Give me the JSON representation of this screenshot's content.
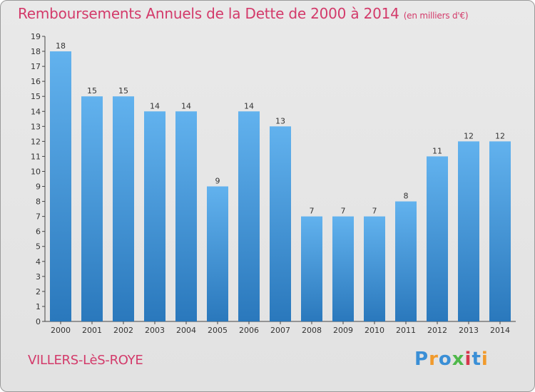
{
  "header": {
    "title": "Remboursements Annuels de la Dette de 2000 à 2014",
    "unit": "(en milliers d'€)"
  },
  "footer": {
    "commune": "VILLERS-LèS-ROYE",
    "logo_letters": [
      "P",
      "r",
      "o",
      "x",
      "i",
      "t",
      "i"
    ]
  },
  "colors": {
    "title": "#d33a6a",
    "bar_light": "#62b2ee",
    "bar_dark": "#2a78bc",
    "logo": [
      "#3a8fd6",
      "#f19a2c",
      "#3a8fd6",
      "#4fb84a",
      "#d6364c",
      "#3a8fd6",
      "#f19a2c"
    ]
  },
  "chart_data": {
    "type": "bar",
    "title": "Remboursements Annuels de la Dette de 2000 à 2014",
    "categories": [
      "2000",
      "2001",
      "2002",
      "2003",
      "2004",
      "2005",
      "2006",
      "2007",
      "2008",
      "2009",
      "2010",
      "2011",
      "2012",
      "2013",
      "2014"
    ],
    "values": [
      18,
      15,
      15,
      14,
      14,
      9,
      14,
      13,
      7,
      7,
      7,
      8,
      11,
      12,
      12
    ],
    "yticks": [
      "0",
      "1",
      "2",
      "3",
      "4",
      "5",
      "6",
      "7",
      "8",
      "9",
      "10",
      "11",
      "12",
      "13",
      "14",
      "15",
      "16",
      "17",
      "18",
      "19"
    ],
    "ylim": [
      0,
      19
    ],
    "grid": false,
    "xlabel": "",
    "ylabel": ""
  }
}
